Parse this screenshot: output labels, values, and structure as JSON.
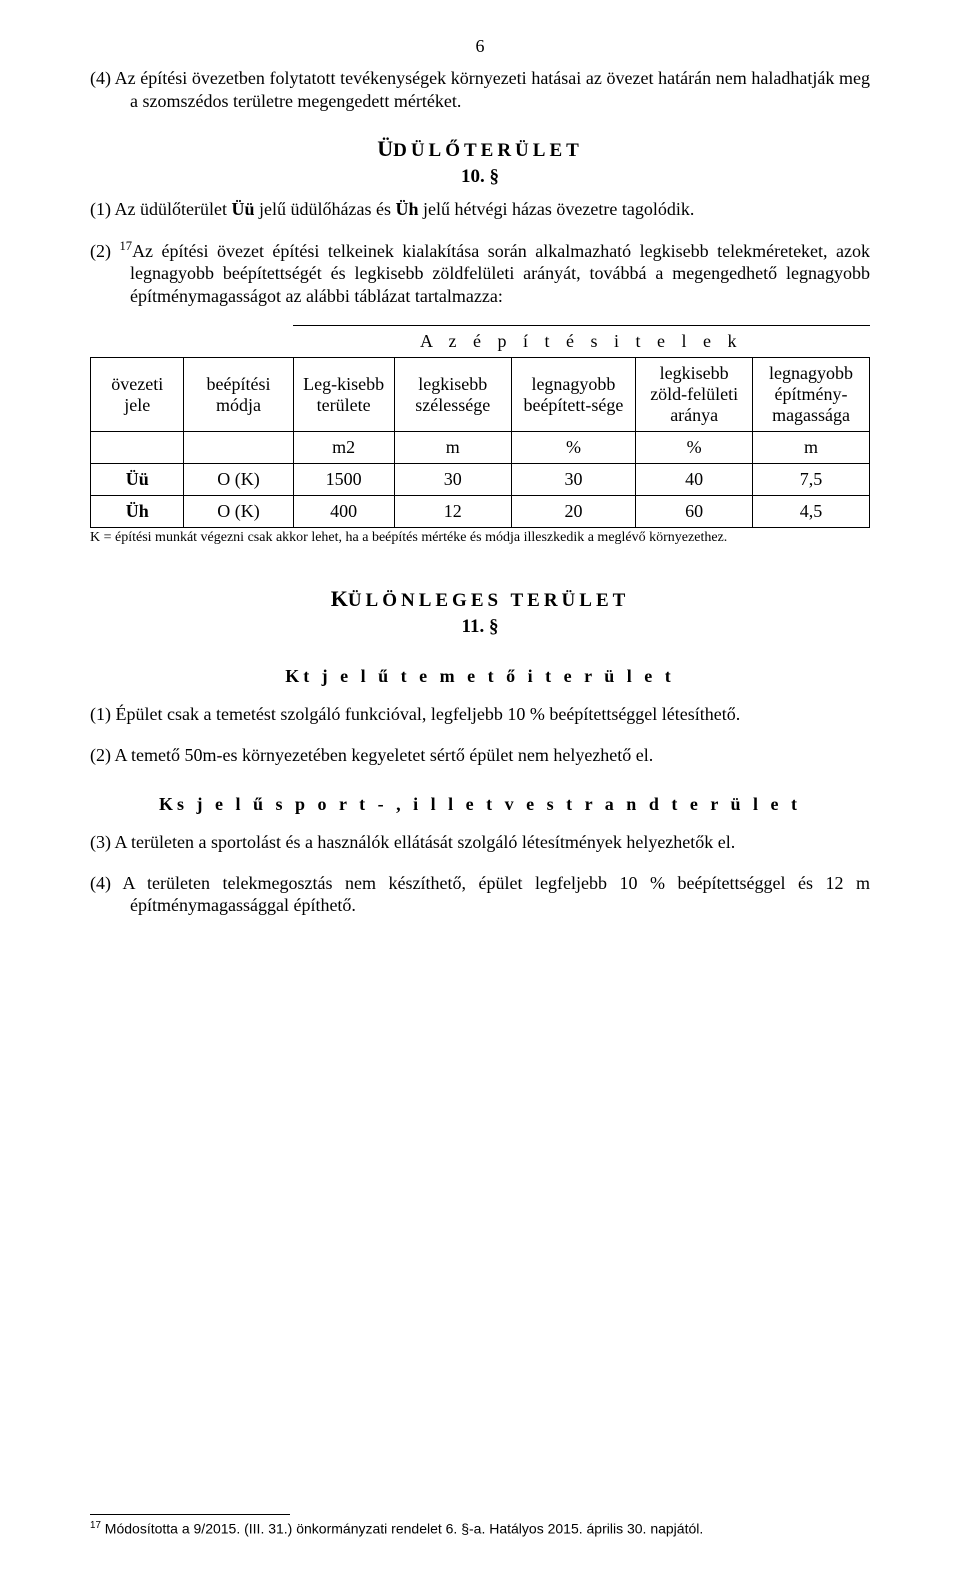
{
  "page_number": "6",
  "para4": "(4)  Az építési övezetben folytatott tevékenységek környezeti hatásai az övezet határán nem haladhatják meg a szomszédos területre megengedett mértéket.",
  "heading1_first": "Ü",
  "heading1_rest": "DÜLŐTERÜLET",
  "section10": "10. §",
  "para10_1_pre": "(1) Az üdülőterület ",
  "para10_1_bold1": "Üü",
  "para10_1_mid": " jelű üdülőházas és ",
  "para10_1_bold2": "Üh",
  "para10_1_end": " jelű hétvégi házas övezetre tagolódik.",
  "para10_2_lead": "(2) ",
  "para10_2_sup": "17",
  "para10_2_rest": "Az építési övezet építési telkeinek kialakítása során alkalmazható legkisebb telekméreteket, azok legnagyobb beépítettségét és legkisebb zöldfelületi arányát, továbbá a megengedhető legnagyobb építménymagasságot az alábbi táblázat tartalmazza:",
  "table": {
    "caption": "A z   é p í t é s i   t e l e k",
    "headers": [
      "övezeti jele",
      "beépítési módja",
      "Leg-kisebb területe",
      "legkisebb szélessége",
      "legnagyobb beépített-sége",
      "legkisebb zöld-felületi aránya",
      "legnagyobb építmény-magassága"
    ],
    "units": [
      "",
      "",
      "m2",
      "m",
      "%",
      "%",
      "m"
    ],
    "rows": [
      {
        "jele": "Üü",
        "modja": "O (K)",
        "vals": [
          "1500",
          "30",
          "30",
          "40",
          "7,5"
        ]
      },
      {
        "jele": "Üh",
        "modja": "O (K)",
        "vals": [
          "400",
          "12",
          "20",
          "60",
          "4,5"
        ]
      }
    ],
    "note": "K = építési munkát végezni csak akkor lehet, ha a beépítés mértéke és módja illeszkedik a meglévő környezethez.",
    "col_widths": [
      "12%",
      "14%",
      "13%",
      "15%",
      "16%",
      "15%",
      "15%"
    ]
  },
  "heading2_first": "K",
  "heading2_rest": "ÜLÖNLEGES TERÜLET",
  "section11": "11. §",
  "sub1": "Kt  j e l ű   t e m e t ő i   t e r ü l e t",
  "para11_1": "(1) Épület csak a temetést szolgáló funkcióval, legfeljebb 10 % beépítettséggel létesíthető.",
  "para11_2": "(2) A temető 50m-es környezetében kegyeletet sértő épület nem helyezhető el.",
  "sub2": "Ks  j e l ű   s p o r t - ,   i l l e t v e   s t r a n d t e r ü l e t",
  "para11_3": "(3) A területen a sportolást és a használók ellátását szolgáló létesítmények helyezhetők el.",
  "para11_4": "(4) A területen telekmegosztás nem készíthető, épület legfeljebb 10 % beépítettséggel és 12 m építménymagassággal építhető.",
  "footnote_sup": "17",
  "footnote_text": " Módosította a 9/2015. (III. 31.) önkormányzati rendelet 6. §-a. Hatályos 2015. április 30. napjától."
}
